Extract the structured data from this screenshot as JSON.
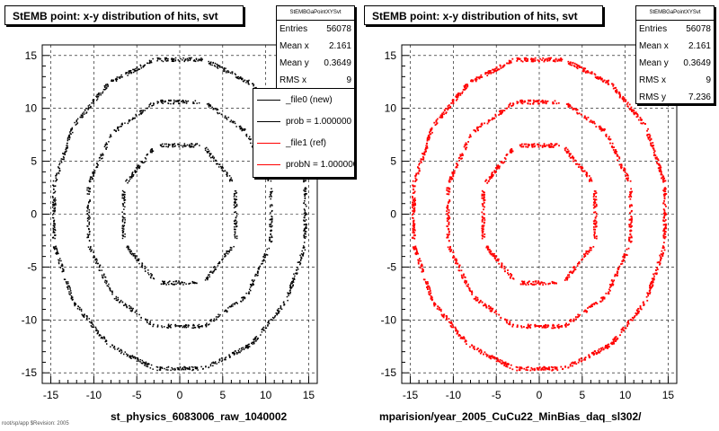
{
  "chart_data": [
    {
      "type": "scatter",
      "title": "StEMB point: x-y distribution of hits, svt",
      "xlabel": "st_physics_6083006_raw_1040002",
      "xlim": [
        -16,
        16
      ],
      "ylim": [
        -16,
        16
      ],
      "x_ticks": [
        -15,
        -10,
        -5,
        0,
        5,
        10,
        15
      ],
      "y_ticks": [
        -15,
        -10,
        -5,
        0,
        5,
        10,
        15
      ],
      "grid": true,
      "stats": {
        "header": "StEMBGaPointXYSvt",
        "rows": [
          {
            "label": "Entries",
            "value": "56078"
          },
          {
            "label": "Mean x",
            "value": "2.161"
          },
          {
            "label": "Mean y",
            "value": "0.3649"
          },
          {
            "label": "RMS x",
            "value": "9"
          }
        ]
      },
      "legend": {
        "placement": "top-right",
        "entries": [
          {
            "label": "_file0 (new)",
            "color": "#000000"
          },
          {
            "label": "prob = 1.000000",
            "color": "#000000"
          },
          {
            "label": "_file1 (ref)",
            "color": "#ff0000"
          },
          {
            "label": "probN = 1.000000",
            "color": "#ff0000"
          }
        ]
      },
      "series": [
        {
          "color": "#000000"
        }
      ]
    },
    {
      "type": "scatter",
      "title": "StEMB point: x-y distribution of hits, svt",
      "xlabel": "mparision/year_2005_CuCu22_MinBias_daq_sl302/",
      "xlim": [
        -16,
        16
      ],
      "ylim": [
        -16,
        16
      ],
      "x_ticks": [
        -15,
        -10,
        -5,
        0,
        5,
        10,
        15
      ],
      "y_ticks": [
        -15,
        -10,
        -5,
        0,
        5,
        10,
        15
      ],
      "grid": true,
      "stats": {
        "header": "StEMBGaPointXYSvt",
        "rows": [
          {
            "label": "Entries",
            "value": "56078"
          },
          {
            "label": "Mean x",
            "value": "2.161"
          },
          {
            "label": "Mean y",
            "value": "0.3649"
          },
          {
            "label": "RMS x",
            "value": "9"
          },
          {
            "label": "RMS y",
            "value": "7.236"
          }
        ]
      },
      "series": [
        {
          "color": "#ff0000"
        }
      ]
    }
  ],
  "footer": "root/sp/app  $Revision: 2005"
}
